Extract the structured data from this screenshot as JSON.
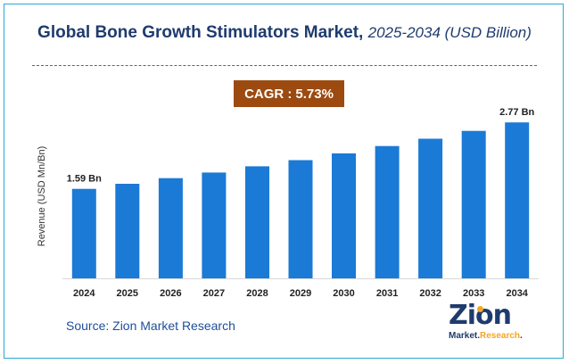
{
  "title": {
    "main": "Global Bone Growth Stimulators Market,",
    "sub": "2025-2034 (USD Billion)"
  },
  "cagr": {
    "label": "CAGR :",
    "value": "5.73%"
  },
  "source": "Source: Zion Market Research",
  "logo": {
    "name": "Zion",
    "sub_prefix": "Market.",
    "sub_accent": "Research",
    "sub_suffix": "."
  },
  "colors": {
    "bar": "#1a7ad6",
    "accent_box": "#9c4a10",
    "title": "#1f3b6e",
    "frame": "#29a9d6"
  },
  "chart_data": {
    "type": "bar",
    "title": "Global Bone Growth Stimulators Market, 2025-2034 (USD Billion)",
    "xlabel": "",
    "ylabel": "Revenue (USD Mn/Bn)",
    "categories": [
      "2024",
      "2025",
      "2026",
      "2027",
      "2028",
      "2029",
      "2030",
      "2031",
      "2032",
      "2033",
      "2034"
    ],
    "values": [
      1.59,
      1.68,
      1.78,
      1.88,
      1.99,
      2.1,
      2.22,
      2.35,
      2.48,
      2.62,
      2.77
    ],
    "data_labels": [
      {
        "index": 0,
        "text": "1.59 Bn"
      },
      {
        "index": 10,
        "text": "2.77 Bn"
      }
    ],
    "ylim": [
      0,
      3.2
    ],
    "grid": false,
    "legend": "none"
  }
}
